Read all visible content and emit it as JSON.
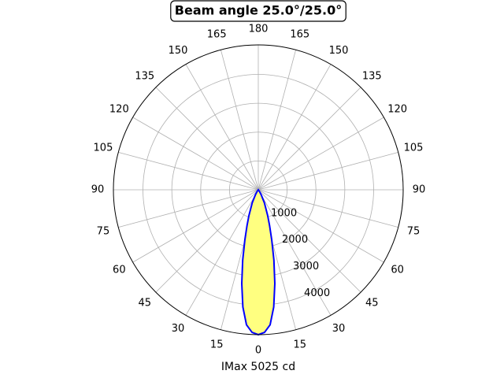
{
  "chart_data": {
    "type": "polar",
    "title": "Beam angle 25.0°/25.0°",
    "xlabel": "IMax 5025 cd",
    "theta_zero": "bottom",
    "rlim": [
      0,
      5025
    ],
    "rticks": [
      1000,
      2000,
      3000,
      4000
    ],
    "thetaticks": [
      0,
      15,
      30,
      45,
      60,
      75,
      90,
      105,
      120,
      135,
      150,
      165,
      180,
      {
        "value": 195,
        "label": "165"
      },
      {
        "value": 210,
        "label": "150"
      },
      {
        "value": 225,
        "label": "135"
      },
      {
        "value": 240,
        "label": "120"
      },
      {
        "value": 255,
        "label": "105"
      },
      {
        "value": 270,
        "label": "90"
      },
      {
        "value": 285,
        "label": "75"
      },
      {
        "value": 300,
        "label": "60"
      },
      {
        "value": 315,
        "label": "45"
      },
      {
        "value": 330,
        "label": "30"
      },
      {
        "value": 345,
        "label": "15"
      }
    ],
    "grid": true,
    "series": [
      {
        "color": "#0000ff",
        "fill": "#ffff80",
        "theta": [
          -40,
          -35,
          -30,
          -25,
          -20,
          -17.5,
          -15,
          -12.5,
          -10,
          -7.5,
          -5,
          -2.5,
          0,
          2.5,
          5,
          7.5,
          10,
          12.5,
          15,
          17.5,
          20,
          25,
          30,
          35,
          40
        ],
        "values": [
          0,
          60,
          200,
          500,
          950,
          1300,
          1800,
          2500,
          3300,
          4100,
          4700,
          4950,
          5025,
          4950,
          4700,
          4100,
          3300,
          2500,
          1800,
          1300,
          950,
          500,
          200,
          60,
          0
        ]
      }
    ]
  }
}
